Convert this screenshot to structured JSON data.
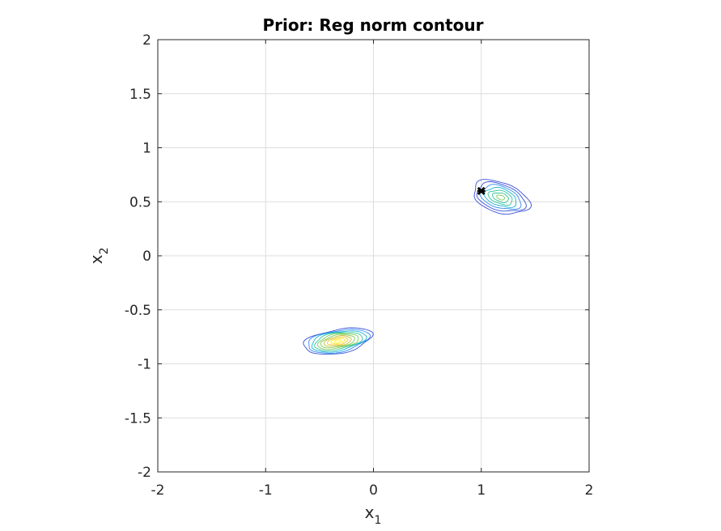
{
  "chart_data": {
    "type": "contour",
    "title": "Prior: Reg norm contour",
    "xlabel": "x",
    "xlabel_sub": "1",
    "ylabel": "x",
    "ylabel_sub": "2",
    "xlim": [
      -2,
      2
    ],
    "ylim": [
      -2,
      2
    ],
    "xticks": [
      -2,
      -1,
      0,
      1,
      2
    ],
    "yticks": [
      -2,
      -1.5,
      -1,
      -0.5,
      0,
      0.5,
      1,
      1.5,
      2
    ],
    "xtick_labels": [
      "-2",
      "-1",
      "0",
      "1",
      "2"
    ],
    "ytick_labels": [
      "-2",
      "-1.5",
      "-1",
      "-0.5",
      "0",
      "0.5",
      "1",
      "1.5",
      "2"
    ],
    "grid": true,
    "clusters": [
      {
        "center": [
          -0.33,
          -0.79
        ],
        "peak": 1.0,
        "rx": 0.32,
        "ry": 0.11,
        "rot_deg": 10,
        "levels": 10
      },
      {
        "center": [
          1.18,
          0.54
        ],
        "peak": 0.55,
        "rx": 0.27,
        "ry": 0.14,
        "rot_deg": -18,
        "levels": 7
      }
    ],
    "marker": {
      "point": [
        1.0,
        0.6
      ],
      "symbol": "x",
      "color": "#000000"
    },
    "colormap": [
      "#2a1a8a",
      "#3a4fd8",
      "#2f8cf0",
      "#19b2d6",
      "#2fc59a",
      "#7fcc5a",
      "#c3c13a",
      "#f0c531",
      "#f9e925",
      "#fdf32a"
    ]
  }
}
